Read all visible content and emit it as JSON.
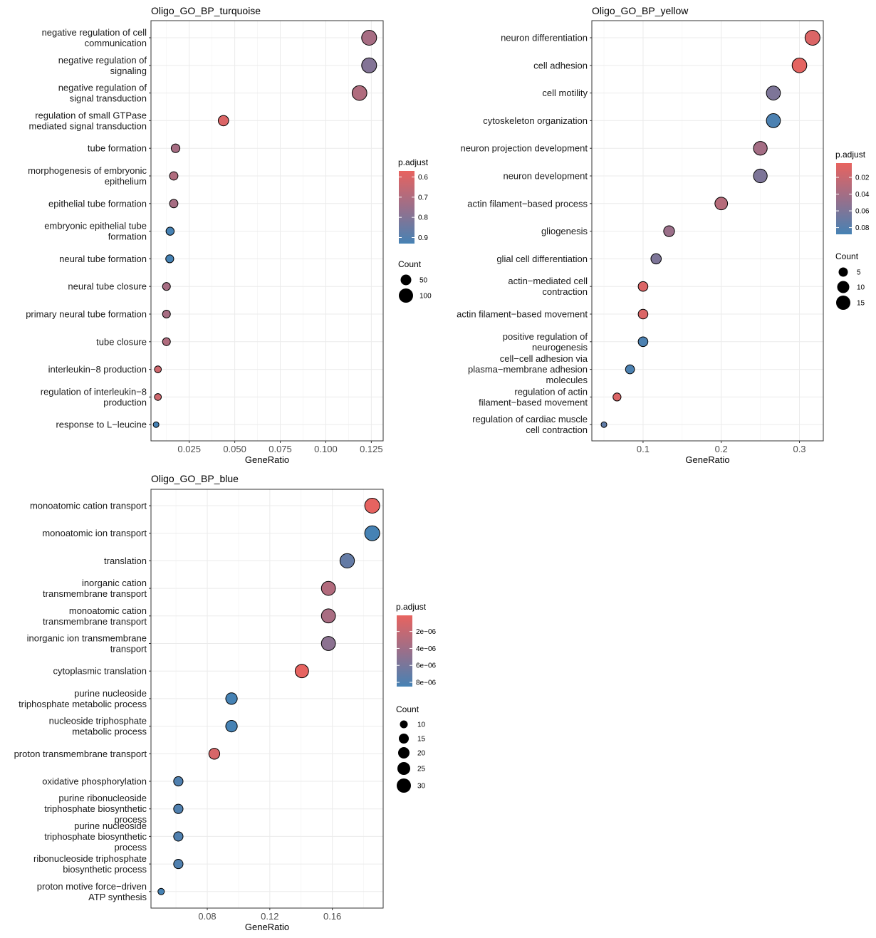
{
  "colors": {
    "high": "#e8635f",
    "mid": "#9a6f8a",
    "low": "#4682b4",
    "grid": "#ebebeb"
  },
  "chart_data": [
    {
      "type": "scatter",
      "title": "Oligo_GO_BP_turquoise",
      "xlabel": "GeneRatio",
      "xlim": [
        0.004,
        0.1315
      ],
      "xticks": [
        0.025,
        0.05,
        0.075,
        0.1,
        0.125
      ],
      "xtick_labels": [
        "0.025",
        "0.050",
        "0.075",
        "0.100",
        "0.125"
      ],
      "categories": [
        "negative regulation of cell\ncommunication",
        "negative regulation of\nsignaling",
        "negative regulation of\nsignal transduction",
        "regulation of small GTPase\nmediated signal transduction",
        "tube formation",
        "morphogenesis of embryonic\nepithelium",
        "epithelial tube formation",
        "embryonic epithelial tube\nformation",
        "neural tube formation",
        "neural tube closure",
        "primary neural tube formation",
        "tube closure",
        "interleukin−8 production",
        "regulation of interleukin−8\nproduction",
        "response to L−leucine"
      ],
      "x": [
        0.1238,
        0.1238,
        0.1185,
        0.0438,
        0.0175,
        0.0165,
        0.0165,
        0.0145,
        0.0143,
        0.0125,
        0.0125,
        0.0125,
        0.0078,
        0.0078,
        0.0068
      ],
      "count": [
        135,
        135,
        130,
        40,
        20,
        18,
        18,
        16,
        15,
        14,
        14,
        14,
        9,
        9,
        7
      ],
      "p_adjust": [
        0.72,
        0.8,
        0.7,
        0.6,
        0.72,
        0.7,
        0.72,
        0.93,
        0.93,
        0.72,
        0.72,
        0.7,
        0.63,
        0.63,
        0.93
      ],
      "legend": {
        "color_title": "p.adjust",
        "color_range": [
          0.57,
          0.93
        ],
        "color_ticks": [
          0.6,
          0.7,
          0.8,
          0.9
        ],
        "color_tick_labels": [
          "0.6",
          "0.7",
          "0.8",
          "0.9"
        ],
        "size_title": "Count",
        "size_values": [
          50,
          100
        ],
        "size_labels": [
          "50",
          "100"
        ]
      }
    },
    {
      "type": "scatter",
      "title": "Oligo_GO_BP_yellow",
      "xlabel": "GeneRatio",
      "xlim": [
        0.0345,
        0.3305
      ],
      "xticks": [
        0.1,
        0.2,
        0.3
      ],
      "xtick_labels": [
        "0.1",
        "0.2",
        "0.3"
      ],
      "categories": [
        "neuron differentiation",
        "cell adhesion",
        "cell motility",
        "cytoskeleton organization",
        "neuron projection development",
        "neuron development",
        "actin filament−based process",
        "gliogenesis",
        "glial cell differentiation",
        "actin−mediated cell\ncontraction",
        "actin filament−based movement",
        "positive regulation of\nneurogenesis",
        "cell−cell adhesion via\nplasma−membrane adhesion\nmolecules",
        "regulation of actin\nfilament−based movement",
        "regulation of cardiac muscle\ncell contraction"
      ],
      "x": [
        0.3167,
        0.3,
        0.2667,
        0.2667,
        0.25,
        0.25,
        0.2,
        0.1333,
        0.1167,
        0.1,
        0.1,
        0.1,
        0.0833,
        0.0667,
        0.05
      ],
      "count": [
        19,
        18,
        16,
        16,
        15,
        15,
        12,
        8,
        7,
        6,
        6,
        6,
        5,
        4,
        3
      ],
      "p_adjust": [
        0.01,
        0.005,
        0.06,
        0.085,
        0.04,
        0.06,
        0.03,
        0.045,
        0.06,
        0.01,
        0.01,
        0.085,
        0.085,
        0.01,
        0.075
      ],
      "legend": {
        "color_title": "p.adjust",
        "color_range": [
          0.003,
          0.088
        ],
        "color_ticks": [
          0.02,
          0.04,
          0.06,
          0.08
        ],
        "color_tick_labels": [
          "0.02",
          "0.04",
          "0.06",
          "0.08"
        ],
        "size_title": "Count",
        "size_values": [
          5,
          10,
          15
        ],
        "size_labels": [
          "5",
          "10",
          "15"
        ]
      }
    },
    {
      "type": "scatter",
      "title": "Oligo_GO_BP_blue",
      "xlabel": "GeneRatio",
      "xlim": [
        0.044,
        0.1925
      ],
      "xticks": [
        0.08,
        0.12,
        0.16
      ],
      "xtick_labels": [
        "0.08",
        "0.12",
        "0.16"
      ],
      "categories": [
        "monoatomic cation transport",
        "monoatomic ion transport",
        "translation",
        "inorganic cation\ntransmembrane transport",
        "monoatomic cation\ntransmembrane transport",
        "inorganic ion transmembrane\ntransport",
        "cytoplasmic translation",
        "purine nucleoside\ntriphosphate metabolic process",
        "nucleoside triphosphate\nmetabolic process",
        "proton transmembrane transport",
        "oxidative phosphorylation",
        "purine ribonucleoside\ntriphosphate biosynthetic\nprocess",
        "purine nucleoside\ntriphosphate biosynthetic\nprocess",
        "ribonucleoside triphosphate\nbiosynthetic process",
        "proton motive force−driven\nATP synthesis"
      ],
      "x": [
        0.1855,
        0.1855,
        0.1695,
        0.1575,
        0.1575,
        0.1575,
        0.1405,
        0.0955,
        0.0955,
        0.0845,
        0.0615,
        0.0615,
        0.0615,
        0.0615,
        0.0505
      ],
      "count": [
        34,
        34,
        31,
        29,
        29,
        29,
        26,
        18,
        18,
        16,
        12,
        12,
        12,
        12,
        9
      ],
      "p_adjust": [
        2e-07,
        9e-06,
        7e-06,
        3e-06,
        3.5e-06,
        5e-06,
        2e-07,
        9e-06,
        9e-06,
        1e-06,
        8e-06,
        8e-06,
        8e-06,
        8e-06,
        9e-06
      ],
      "legend": {
        "color_title": "p.adjust",
        "color_range": [
          1e-07,
          8.5e-06
        ],
        "color_ticks": [
          2e-06,
          4e-06,
          6e-06,
          8e-06
        ],
        "color_tick_labels": [
          "2e−06",
          "4e−06",
          "6e−06",
          "8e−06"
        ],
        "size_title": "Count",
        "size_values": [
          10,
          15,
          20,
          25,
          30
        ],
        "size_labels": [
          "10",
          "15",
          "20",
          "25",
          "30"
        ]
      }
    }
  ]
}
